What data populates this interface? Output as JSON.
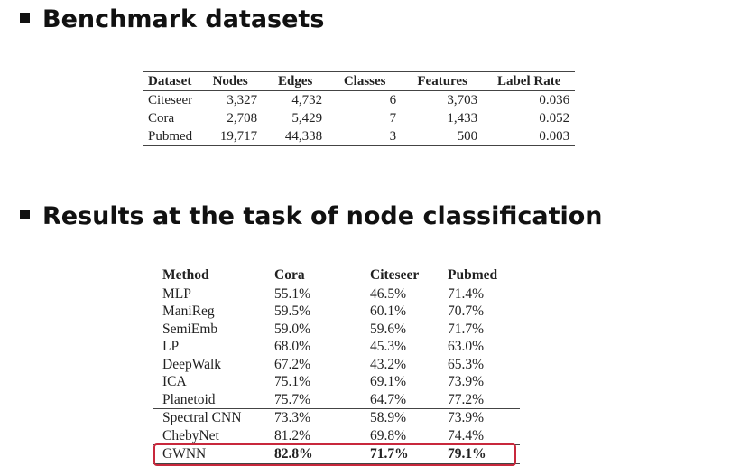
{
  "headings": {
    "benchmark": "Benchmark datasets",
    "results": "Results at the task of node classification"
  },
  "datasets_table": {
    "headers": [
      "Dataset",
      "Nodes",
      "Edges",
      "Classes",
      "Features",
      "Label Rate"
    ],
    "rows": [
      [
        "Citeseer",
        "3,327",
        "4,732",
        "6",
        "3,703",
        "0.036"
      ],
      [
        "Cora",
        "2,708",
        "5,429",
        "7",
        "1,433",
        "0.052"
      ],
      [
        "Pubmed",
        "19,717",
        "44,338",
        "3",
        "500",
        "0.003"
      ]
    ]
  },
  "results_table": {
    "headers": [
      "Method",
      "Cora",
      "Citeseer",
      "Pubmed"
    ],
    "rows": [
      [
        "MLP",
        "55.1%",
        "46.5%",
        "71.4%"
      ],
      [
        "ManiReg",
        "59.5%",
        "60.1%",
        "70.7%"
      ],
      [
        "SemiEmb",
        "59.0%",
        "59.6%",
        "71.7%"
      ],
      [
        "LP",
        "68.0%",
        "45.3%",
        "63.0%"
      ],
      [
        "DeepWalk",
        "67.2%",
        "43.2%",
        "65.3%"
      ],
      [
        "ICA",
        "75.1%",
        "69.1%",
        "73.9%"
      ],
      [
        "Planetoid",
        "75.7%",
        "64.7%",
        "77.2%"
      ],
      [
        "Spectral CNN",
        "73.3%",
        "58.9%",
        "73.9%"
      ],
      [
        "ChebyNet",
        "81.2%",
        "69.8%",
        "74.4%"
      ],
      [
        "GWNN",
        "82.8%",
        "71.7%",
        "79.1%"
      ]
    ],
    "highlight_color": "#c8283c"
  }
}
